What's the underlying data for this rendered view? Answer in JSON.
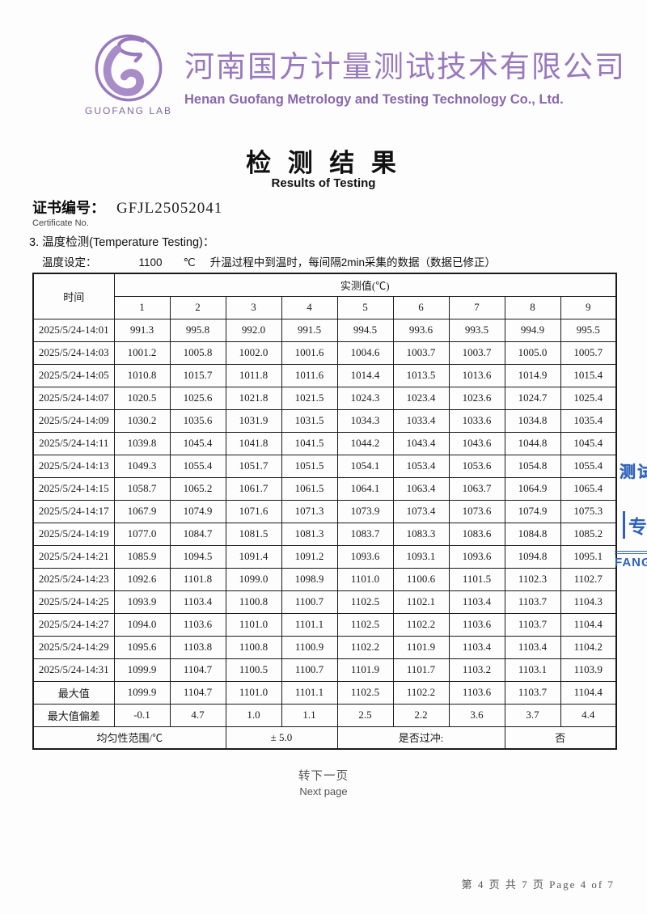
{
  "colors": {
    "brand_purple": "#9879bd",
    "stamp_blue": "#2e62b8"
  },
  "header": {
    "logo_text": "GUOFANG  LAB",
    "company_cn": "河南国方计量测试技术有限公司",
    "company_en": "Henan Guofang Metrology and Testing Technology Co., Ltd."
  },
  "title": {
    "cn": "检 测 结 果",
    "en": "Results of  Testing"
  },
  "certificate": {
    "label_cn": "证书编号：",
    "label_en": "Certificate No.",
    "number": "GFJL25052041"
  },
  "section": {
    "heading": "3. 温度检测(Temperature Testing)：",
    "setting_label": "温度设定：",
    "setting_value": "1100",
    "setting_unit": "℃",
    "setting_note": "升温过程中到温时，每间隔2min采集的数据（数据已修正）"
  },
  "table": {
    "time_header": "时间",
    "value_header": "实测值(℃)",
    "channel_headers": [
      "1",
      "2",
      "3",
      "4",
      "5",
      "6",
      "7",
      "8",
      "9"
    ],
    "rows": [
      {
        "label": "2025/5/24-14:01",
        "values": [
          "991.3",
          "995.8",
          "992.0",
          "991.5",
          "994.5",
          "993.6",
          "993.5",
          "994.9",
          "995.5"
        ]
      },
      {
        "label": "2025/5/24-14:03",
        "values": [
          "1001.2",
          "1005.8",
          "1002.0",
          "1001.6",
          "1004.6",
          "1003.7",
          "1003.7",
          "1005.0",
          "1005.7"
        ]
      },
      {
        "label": "2025/5/24-14:05",
        "values": [
          "1010.8",
          "1015.7",
          "1011.8",
          "1011.6",
          "1014.4",
          "1013.5",
          "1013.6",
          "1014.9",
          "1015.4"
        ]
      },
      {
        "label": "2025/5/24-14:07",
        "values": [
          "1020.5",
          "1025.6",
          "1021.8",
          "1021.5",
          "1024.3",
          "1023.4",
          "1023.6",
          "1024.7",
          "1025.4"
        ]
      },
      {
        "label": "2025/5/24-14:09",
        "values": [
          "1030.2",
          "1035.6",
          "1031.9",
          "1031.5",
          "1034.3",
          "1033.4",
          "1033.6",
          "1034.8",
          "1035.4"
        ]
      },
      {
        "label": "2025/5/24-14:11",
        "values": [
          "1039.8",
          "1045.4",
          "1041.8",
          "1041.5",
          "1044.2",
          "1043.4",
          "1043.6",
          "1044.8",
          "1045.4"
        ]
      },
      {
        "label": "2025/5/24-14:13",
        "values": [
          "1049.3",
          "1055.4",
          "1051.7",
          "1051.5",
          "1054.1",
          "1053.4",
          "1053.6",
          "1054.8",
          "1055.4"
        ]
      },
      {
        "label": "2025/5/24-14:15",
        "values": [
          "1058.7",
          "1065.2",
          "1061.7",
          "1061.5",
          "1064.1",
          "1063.4",
          "1063.7",
          "1064.9",
          "1065.4"
        ]
      },
      {
        "label": "2025/5/24-14:17",
        "values": [
          "1067.9",
          "1074.9",
          "1071.6",
          "1071.3",
          "1073.9",
          "1073.4",
          "1073.6",
          "1074.9",
          "1075.3"
        ]
      },
      {
        "label": "2025/5/24-14:19",
        "values": [
          "1077.0",
          "1084.7",
          "1081.5",
          "1081.3",
          "1083.7",
          "1083.3",
          "1083.6",
          "1084.8",
          "1085.2"
        ]
      },
      {
        "label": "2025/5/24-14:21",
        "values": [
          "1085.9",
          "1094.5",
          "1091.4",
          "1091.2",
          "1093.6",
          "1093.1",
          "1093.6",
          "1094.8",
          "1095.1"
        ]
      },
      {
        "label": "2025/5/24-14:23",
        "values": [
          "1092.6",
          "1101.8",
          "1099.0",
          "1098.9",
          "1101.0",
          "1100.6",
          "1101.5",
          "1102.3",
          "1102.7"
        ]
      },
      {
        "label": "2025/5/24-14:25",
        "values": [
          "1093.9",
          "1103.4",
          "1100.8",
          "1100.7",
          "1102.5",
          "1102.1",
          "1103.4",
          "1103.7",
          "1104.3"
        ]
      },
      {
        "label": "2025/5/24-14:27",
        "values": [
          "1094.0",
          "1103.6",
          "1101.0",
          "1101.1",
          "1102.5",
          "1102.2",
          "1103.6",
          "1103.7",
          "1104.4"
        ]
      },
      {
        "label": "2025/5/24-14:29",
        "values": [
          "1095.6",
          "1103.8",
          "1100.8",
          "1100.9",
          "1102.2",
          "1101.9",
          "1103.4",
          "1103.4",
          "1104.2"
        ]
      },
      {
        "label": "2025/5/24-14:31",
        "values": [
          "1099.9",
          "1104.7",
          "1100.5",
          "1100.7",
          "1101.9",
          "1101.7",
          "1103.2",
          "1103.1",
          "1103.9"
        ]
      },
      {
        "label": "最大值",
        "values": [
          "1099.9",
          "1104.7",
          "1101.0",
          "1101.1",
          "1102.5",
          "1102.2",
          "1103.6",
          "1103.7",
          "1104.4"
        ]
      },
      {
        "label": "最大值偏差",
        "values": [
          "-0.1",
          "4.7",
          "1.0",
          "1.1",
          "2.5",
          "2.2",
          "3.6",
          "3.7",
          "4.4"
        ]
      }
    ],
    "summary": {
      "uniformity_label": "均匀性范围/℃",
      "uniformity_value": "± 5.0",
      "overshoot_label": "是否过冲:",
      "overshoot_value": "否"
    }
  },
  "footer": {
    "next_cn": "转下一页",
    "next_en": "Next page",
    "page_info": "第 4 页 共 7 页 Page 4 of 7"
  },
  "stamps": [
    {
      "text": "测试"
    },
    {
      "text": "专"
    },
    {
      "text": "FANG"
    }
  ]
}
